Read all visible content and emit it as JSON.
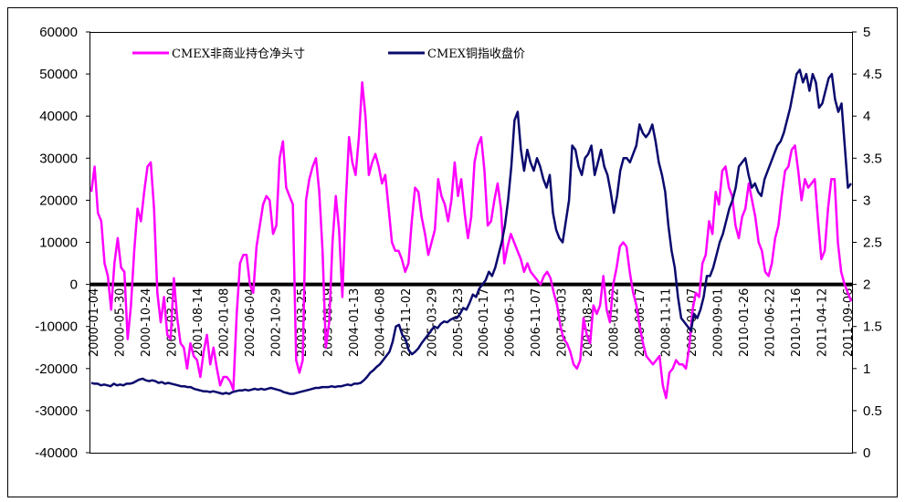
{
  "chart_data": {
    "type": "line",
    "title": "",
    "xlabel": "",
    "ylabel_left": "",
    "ylabel_right": "",
    "grid": false,
    "legend_position": "top-left",
    "left_axis": {
      "ylim": [
        -40000,
        60000
      ],
      "ticks": [
        "60000",
        "50000",
        "40000",
        "30000",
        "20000",
        "10000",
        "0",
        "-10000",
        "-20000",
        "-30000",
        "-40000"
      ]
    },
    "right_axis": {
      "ylim": [
        0,
        5
      ],
      "ticks": [
        "5",
        "4.5",
        "4",
        "3.5",
        "3",
        "2.5",
        "2",
        "1.5",
        "1",
        "0.5",
        "0"
      ]
    },
    "x_tick_labels": [
      "2000-01-04",
      "2000-05-30",
      "2000-10-24",
      "2001-03-20",
      "2001-08-14",
      "2002-01-08",
      "2002-06-04",
      "2002-10-29",
      "2003-03-25",
      "2003-08-19",
      "2004-01-13",
      "2004-06-08",
      "2004-11-02",
      "2005-03-29",
      "2005-08-23",
      "2006-01-17",
      "2006-06-13",
      "2006-11-07",
      "2007-04-03",
      "2007-08-28",
      "2008-01-22",
      "2008-06-17",
      "2008-11-11",
      "2009-04-07",
      "2009-09-01",
      "2010-01-26",
      "2010-06-22",
      "2010-11-16",
      "2011-04-12",
      "2011-09-06"
    ],
    "series": [
      {
        "name": "CMEX非商业持仓净头寸",
        "axis": "left",
        "color": "#ff00ff",
        "values": [
          22000,
          28000,
          17000,
          15000,
          5000,
          2000,
          -6000,
          5000,
          11000,
          4000,
          3000,
          -13000,
          -5000,
          8000,
          18000,
          15000,
          22000,
          28000,
          29000,
          18000,
          -2000,
          -9000,
          -3000,
          -12000,
          -13000,
          1500,
          -8000,
          -14000,
          -15000,
          -20000,
          -14000,
          -17000,
          -18000,
          -22000,
          -16000,
          -12000,
          -19000,
          -15000,
          -20000,
          -24000,
          -22000,
          -22000,
          -23000,
          -25000,
          -7000,
          5000,
          7000,
          7000,
          0,
          -2000,
          9000,
          14000,
          19000,
          21000,
          20000,
          12000,
          14000,
          30000,
          34000,
          23000,
          21000,
          19000,
          -18000,
          -21000,
          -18000,
          20000,
          25000,
          28000,
          30000,
          22000,
          8000,
          -15000,
          -9000,
          10000,
          21000,
          13000,
          -3000,
          19000,
          35000,
          29000,
          26000,
          35000,
          48000,
          40000,
          26000,
          29000,
          31000,
          28000,
          24000,
          26000,
          18000,
          10000,
          8000,
          8000,
          6000,
          3000,
          5000,
          15000,
          23000,
          22000,
          16000,
          12000,
          7000,
          10000,
          13000,
          25000,
          21000,
          19000,
          15000,
          20000,
          29000,
          21000,
          25000,
          17000,
          11000,
          16000,
          29000,
          33000,
          35000,
          27000,
          14000,
          15000,
          20000,
          24000,
          18000,
          5000,
          9000,
          12000,
          10000,
          8000,
          6000,
          3000,
          5000,
          3000,
          2000,
          1000,
          0,
          2000,
          3000,
          1500,
          -2000,
          -5000,
          -10000,
          -13000,
          -14000,
          -16000,
          -19000,
          -20000,
          -18000,
          -8000,
          -12000,
          -14000,
          -5000,
          -7000,
          -5000,
          2000,
          -6000,
          -9000,
          0,
          4000,
          9000,
          10000,
          9000,
          3000,
          -2000,
          -5000,
          -10000,
          -14000,
          -17000,
          -18000,
          -19000,
          -18000,
          -17000,
          -24000,
          -27000,
          -21000,
          -20000,
          -18000,
          -19000,
          -19000,
          -20000,
          -15000,
          -6000,
          -2000,
          -3000,
          5000,
          7000,
          15000,
          12000,
          22000,
          19000,
          27000,
          28000,
          23000,
          21000,
          14000,
          11000,
          16000,
          18000,
          24000,
          20000,
          16000,
          10000,
          8000,
          3000,
          2000,
          5000,
          11000,
          14000,
          21000,
          27000,
          28000,
          32000,
          33000,
          27000,
          20000,
          25000,
          23000,
          24000,
          25000,
          15000,
          6000,
          8000,
          18000,
          25000,
          25000,
          10000,
          3000,
          0,
          -2000,
          -4000
        ]
      },
      {
        "name": "CMEX铜指收盘价",
        "axis": "right",
        "color": "#0a0a6e",
        "values": [
          0.83,
          0.82,
          0.82,
          0.8,
          0.81,
          0.8,
          0.79,
          0.82,
          0.8,
          0.81,
          0.8,
          0.82,
          0.82,
          0.83,
          0.85,
          0.87,
          0.88,
          0.86,
          0.85,
          0.86,
          0.85,
          0.83,
          0.84,
          0.82,
          0.83,
          0.82,
          0.81,
          0.8,
          0.79,
          0.79,
          0.78,
          0.78,
          0.76,
          0.75,
          0.74,
          0.73,
          0.73,
          0.72,
          0.73,
          0.72,
          0.71,
          0.7,
          0.71,
          0.7,
          0.72,
          0.73,
          0.74,
          0.74,
          0.75,
          0.74,
          0.75,
          0.76,
          0.75,
          0.76,
          0.75,
          0.76,
          0.77,
          0.76,
          0.75,
          0.74,
          0.72,
          0.71,
          0.7,
          0.7,
          0.71,
          0.72,
          0.73,
          0.74,
          0.75,
          0.76,
          0.77,
          0.77,
          0.78,
          0.78,
          0.78,
          0.79,
          0.78,
          0.79,
          0.79,
          0.8,
          0.81,
          0.8,
          0.82,
          0.82,
          0.83,
          0.86,
          0.9,
          0.95,
          0.98,
          1.02,
          1.05,
          1.1,
          1.15,
          1.2,
          1.32,
          1.5,
          1.52,
          1.4,
          1.35,
          1.22,
          1.17,
          1.2,
          1.24,
          1.3,
          1.35,
          1.4,
          1.45,
          1.5,
          1.48,
          1.53,
          1.56,
          1.55,
          1.58,
          1.6,
          1.6,
          1.65,
          1.72,
          1.7,
          1.78,
          1.88,
          1.85,
          1.95,
          2.0,
          2.05,
          2.15,
          2.1,
          2.2,
          2.35,
          2.5,
          2.7,
          3.0,
          3.4,
          3.95,
          4.05,
          3.6,
          3.35,
          3.6,
          3.45,
          3.35,
          3.5,
          3.4,
          3.25,
          3.15,
          3.3,
          2.85,
          2.65,
          2.55,
          2.5,
          2.75,
          3.0,
          3.65,
          3.6,
          3.4,
          3.3,
          3.5,
          3.55,
          3.65,
          3.3,
          3.45,
          3.6,
          3.4,
          3.3,
          3.1,
          2.85,
          3.05,
          3.35,
          3.5,
          3.5,
          3.45,
          3.55,
          3.65,
          3.9,
          3.8,
          3.75,
          3.8,
          3.9,
          3.7,
          3.45,
          3.3,
          3.1,
          2.7,
          2.4,
          2.2,
          1.85,
          1.6,
          1.55,
          1.5,
          1.45,
          1.65,
          1.6,
          1.7,
          1.85,
          2.1,
          2.1,
          2.2,
          2.35,
          2.5,
          2.6,
          2.75,
          2.9,
          3.0,
          3.15,
          3.4,
          3.45,
          3.5,
          3.3,
          3.15,
          3.2,
          3.1,
          3.05,
          3.25,
          3.35,
          3.45,
          3.55,
          3.65,
          3.7,
          3.8,
          3.95,
          4.1,
          4.3,
          4.5,
          4.55,
          4.4,
          4.5,
          4.3,
          4.5,
          4.4,
          4.1,
          4.15,
          4.3,
          4.45,
          4.5,
          4.2,
          4.05,
          4.15,
          3.65,
          3.15,
          3.2
        ]
      }
    ]
  }
}
